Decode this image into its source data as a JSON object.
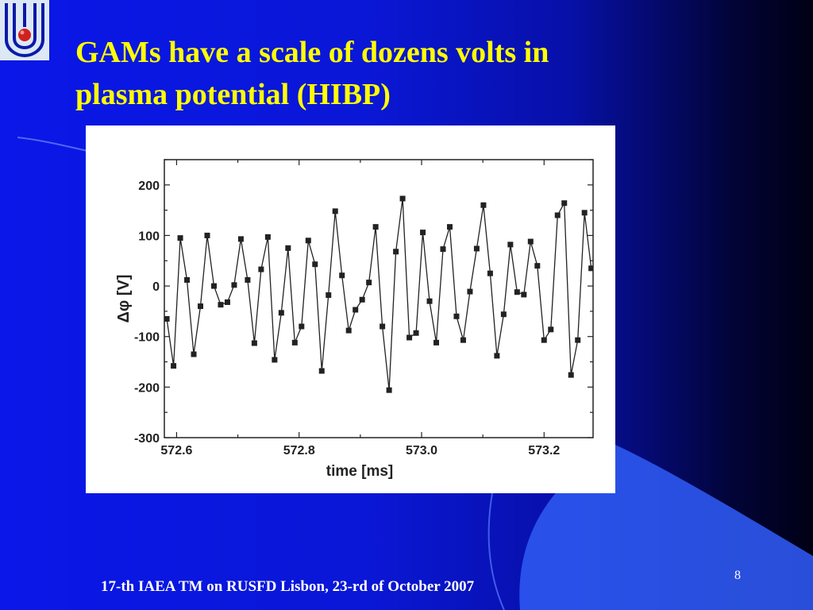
{
  "slide": {
    "title_lines": [
      "GAMs have a scale of dozens volts in",
      "plasma potential (HIBP)"
    ],
    "footer": "17-th IAEA TM on RUSFD Lisbon, 23-rd of October 2007",
    "slide_number": "8"
  },
  "colors": {
    "title": "#ffff00",
    "footer": "#ffffff",
    "background_left": "#0a17e8",
    "background_right": "#000014",
    "chart_series": "#222222"
  },
  "icons": {
    "logo": "institute-logo-icon"
  },
  "chart_data": {
    "type": "line",
    "title": "",
    "xlabel": "time [ms]",
    "ylabel": "Δφ [V]",
    "xlim": [
      572.58,
      573.28
    ],
    "ylim": [
      -300,
      250
    ],
    "x_ticks": [
      "572.6",
      "572.8",
      "573.0",
      "573.2"
    ],
    "x_tick_values": [
      572.6,
      572.8,
      573.0,
      573.2
    ],
    "y_ticks": [
      "200",
      "100",
      "0",
      "-100",
      "-200",
      "-300"
    ],
    "y_tick_values": [
      200,
      100,
      0,
      -100,
      -200,
      -300
    ],
    "grid": false,
    "marker": "square",
    "series": [
      {
        "x": [
          572.584,
          572.595,
          572.606,
          572.617,
          572.628,
          572.639,
          572.65,
          572.661,
          572.672,
          572.683,
          572.694,
          572.705,
          572.716,
          572.727,
          572.738,
          572.749,
          572.76,
          572.771,
          572.782,
          572.793,
          572.804,
          572.815,
          572.826,
          572.837,
          572.848,
          572.859,
          572.87,
          572.881,
          572.892,
          572.903,
          572.914,
          572.925,
          572.936,
          572.947,
          572.958,
          572.969,
          572.98,
          572.991,
          573.002,
          573.013,
          573.024,
          573.035,
          573.046,
          573.057,
          573.068,
          573.079,
          573.09,
          573.101,
          573.112,
          573.123,
          573.134,
          573.145,
          573.156,
          573.167,
          573.178,
          573.189,
          573.2,
          573.211,
          573.222,
          573.233,
          573.244,
          573.255,
          573.266,
          573.277
        ],
        "y": [
          -65,
          -158,
          95,
          12,
          -135,
          -40,
          100,
          0,
          -37,
          -32,
          2,
          93,
          12,
          -113,
          33,
          97,
          -146,
          -53,
          75,
          -112,
          -80,
          90,
          43,
          -168,
          -18,
          148,
          21,
          -88,
          -47,
          -27,
          7,
          117,
          -80,
          -206,
          68,
          173,
          -102,
          -93,
          106,
          -30,
          -112,
          73,
          117,
          -60,
          -107,
          -11,
          74,
          160,
          25,
          -138,
          -56,
          82,
          -12,
          -17,
          88,
          40,
          -107,
          -86,
          140,
          164,
          -176,
          -107,
          145,
          35
        ]
      }
    ]
  }
}
